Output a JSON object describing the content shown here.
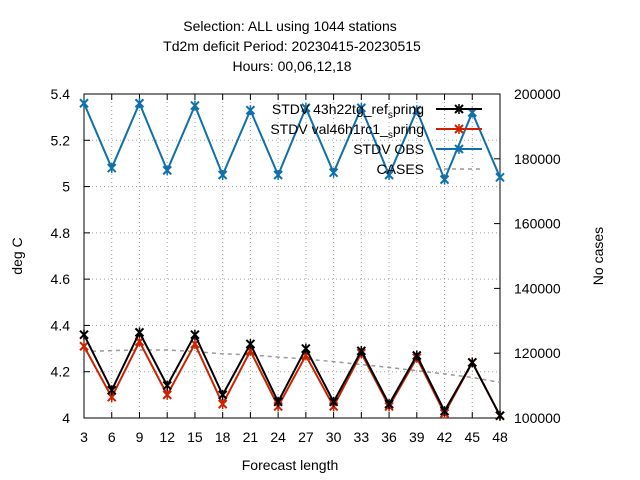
{
  "chart_data": {
    "type": "line",
    "title_lines": [
      "Selection: ALL using  1044 stations",
      "Td2m deficit   Period: 20230415-20230515",
      "Hours:  00,06,12,18"
    ],
    "xlabel": "Forecast length",
    "ylabel": "deg C",
    "y2label": "No cases",
    "x": [
      3,
      6,
      9,
      12,
      15,
      18,
      21,
      24,
      27,
      30,
      33,
      36,
      39,
      42,
      45,
      48
    ],
    "xlim": [
      3,
      48
    ],
    "ylim": [
      4.0,
      5.4
    ],
    "y2lim": [
      100000,
      200000
    ],
    "yticks": [
      "4",
      "4.2",
      "4.4",
      "4.6",
      "4.8",
      "5",
      "5.2",
      "5.4"
    ],
    "y2ticks": [
      "100000",
      "120000",
      "140000",
      "160000",
      "180000",
      "200000"
    ],
    "grid": true,
    "legend_position": "top-right",
    "series": [
      {
        "name": "STDV 43h22tg_ref_spring",
        "legend_main": "STDV 43h22tg_ref",
        "legend_sub": "s",
        "legend_tail": "pring",
        "color": "#000000",
        "axis": "y1",
        "values": [
          4.36,
          4.12,
          4.37,
          4.14,
          4.36,
          4.1,
          4.32,
          4.07,
          4.3,
          4.07,
          4.29,
          4.06,
          4.27,
          4.03,
          4.24,
          4.01
        ]
      },
      {
        "name": "STDV val46h1rc1_spring",
        "legend_main": "STDV val46h1rc1_",
        "legend_sub": "s",
        "legend_tail": "pring",
        "color": "#cc2200",
        "axis": "y1",
        "values": [
          4.31,
          4.09,
          4.33,
          4.1,
          4.32,
          4.06,
          4.29,
          4.05,
          4.27,
          4.05,
          4.28,
          4.05,
          4.26,
          4.02,
          4.24,
          4.01
        ]
      },
      {
        "name": "STDV OBS",
        "legend_main": "STDV OBS",
        "color": "#1070aa",
        "axis": "y1",
        "values": [
          5.36,
          5.08,
          5.36,
          5.07,
          5.35,
          5.05,
          5.33,
          5.05,
          5.34,
          5.06,
          5.34,
          5.05,
          5.33,
          5.03,
          5.32,
          5.04
        ]
      },
      {
        "name": "CASES",
        "legend_main": "CASES",
        "color": "#999999",
        "axis": "y2",
        "dashed": true,
        "values": [
          120500,
          120800,
          121000,
          121000,
          120500,
          119800,
          119500,
          118800,
          118200,
          117400,
          116500,
          115600,
          114600,
          113600,
          112500,
          111000
        ]
      }
    ]
  }
}
